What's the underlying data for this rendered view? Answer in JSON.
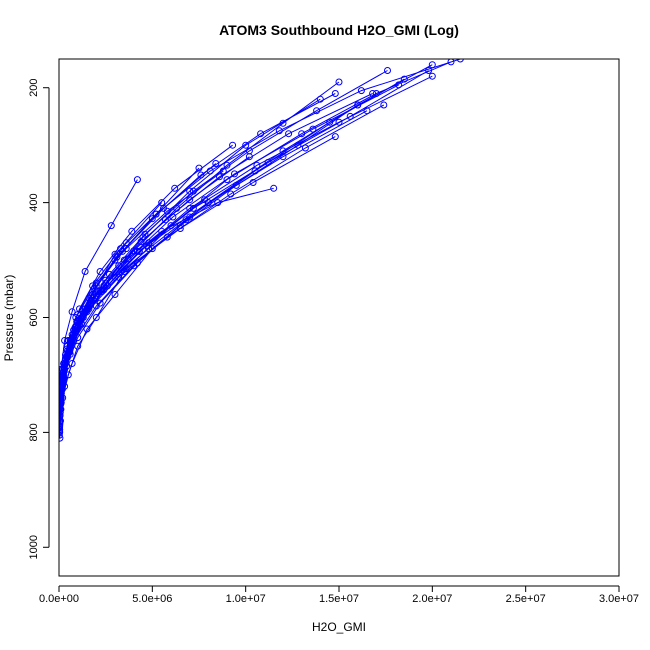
{
  "chart_data": {
    "type": "line",
    "title": "ATOM3 Southbound H2O_GMI (Log)",
    "xlabel": "H2O_GMI",
    "ylabel": "Pressure (mbar)",
    "xlim": [
      0,
      30000000
    ],
    "ylim": [
      1050,
      150
    ],
    "y_reversed": true,
    "grid": false,
    "x_ticks": [
      {
        "value": 0,
        "label": "0.0e+00"
      },
      {
        "value": 5000000,
        "label": "5.0e+06"
      },
      {
        "value": 10000000,
        "label": "1.0e+07"
      },
      {
        "value": 15000000,
        "label": "1.5e+07"
      },
      {
        "value": 20000000,
        "label": "2.0e+07"
      },
      {
        "value": 25000000,
        "label": "2.5e+07"
      },
      {
        "value": 30000000,
        "label": "3.0e+07"
      }
    ],
    "y_ticks": [
      {
        "value": 200,
        "label": "200"
      },
      {
        "value": 400,
        "label": "400"
      },
      {
        "value": 600,
        "label": "600"
      },
      {
        "value": 800,
        "label": "800"
      },
      {
        "value": 1000,
        "label": "1000"
      }
    ],
    "line_color": "#0000ff",
    "series": [
      {
        "x": [
          50000,
          80000,
          200000,
          500000,
          1000000,
          2000000,
          3500000,
          6000000,
          9000000,
          13000000,
          17000000,
          21000000
        ],
        "y": [
          810,
          780,
          740,
          700,
          650,
          600,
          520,
          440,
          360,
          280,
          210,
          155
        ]
      },
      {
        "x": [
          40000,
          100000,
          300000,
          700000,
          1500000,
          3000000,
          5000000,
          8000000,
          12000000,
          16000000,
          20000000
        ],
        "y": [
          800,
          760,
          720,
          680,
          620,
          560,
          480,
          400,
          310,
          230,
          160
        ]
      },
      {
        "x": [
          30000,
          60000,
          150000,
          400000,
          900000,
          1800000,
          3000000,
          5200000,
          7500000
        ],
        "y": [
          790,
          755,
          715,
          670,
          620,
          560,
          490,
          420,
          340
        ]
      },
      {
        "x": [
          60000,
          120000,
          250000,
          600000,
          1200000,
          2500000,
          4500000,
          7000000,
          10000000,
          14000000
        ],
        "y": [
          770,
          740,
          700,
          655,
          600,
          540,
          460,
          380,
          300,
          220
        ]
      },
      {
        "x": [
          20000,
          50000,
          120000,
          300000,
          700000,
          1400000,
          2800000,
          4200000
        ],
        "y": [
          775,
          735,
          690,
          640,
          590,
          520,
          440,
          360
        ]
      },
      {
        "x": [
          80000,
          200000,
          450000,
          900000,
          1700000,
          3200000,
          5500000,
          8500000,
          11500000
        ],
        "y": [
          750,
          715,
          670,
          625,
          575,
          510,
          450,
          400,
          375
        ]
      },
      {
        "x": [
          50000,
          150000,
          350000,
          800000,
          1600000,
          3000000,
          4800000,
          6800000
        ],
        "y": [
          760,
          720,
          680,
          630,
          585,
          530,
          480,
          430
        ]
      },
      {
        "x": [
          100000,
          300000,
          800000,
          2000000,
          4000000,
          6500000,
          9500000,
          12800000,
          16000000
        ],
        "y": [
          740,
          690,
          640,
          580,
          510,
          440,
          370,
          300,
          230
        ]
      },
      {
        "x": [
          30000,
          90000,
          200000,
          450000,
          900000,
          1800000,
          3300000,
          5500000
        ],
        "y": [
          780,
          745,
          700,
          650,
          600,
          545,
          480,
          400
        ]
      },
      {
        "x": [
          70000,
          180000,
          400000,
          1000000,
          2200000,
          4200000,
          7000000,
          10500000,
          14500000,
          18500000
        ],
        "y": [
          765,
          725,
          685,
          635,
          575,
          505,
          425,
          345,
          260,
          185
        ]
      },
      {
        "x": [
          40000,
          100000,
          250000,
          550000,
          1100000,
          2000000,
          3600000
        ],
        "y": [
          795,
          750,
          705,
          660,
          605,
          545,
          470
        ]
      },
      {
        "x": [
          90000,
          250000,
          600000,
          1300000,
          2600000,
          4800000,
          7800000
        ],
        "y": [
          735,
          695,
          650,
          600,
          545,
          470,
          395
        ]
      },
      {
        "x": [
          20000,
          40000,
          90000,
          200000,
          500000,
          1100000,
          2200000,
          3900000,
          6200000,
          9300000
        ],
        "y": [
          805,
          770,
          730,
          690,
          640,
          585,
          520,
          450,
          375,
          300
        ]
      },
      {
        "x": [
          60000,
          140000,
          320000,
          700000,
          1400000,
          2700000,
          4600000,
          7200000,
          10200000,
          13800000,
          17600000
        ],
        "y": [
          758,
          722,
          682,
          638,
          585,
          525,
          455,
          380,
          310,
          240,
          170
        ]
      },
      {
        "x": [
          100000,
          250000,
          500000,
          1000000,
          2000000,
          3600000,
          5800000,
          8800000
        ],
        "y": [
          720,
          680,
          640,
          595,
          540,
          480,
          415,
          345
        ]
      },
      {
        "x": [
          50000,
          120000,
          280000,
          600000,
          1200000,
          2300000,
          4000000,
          6300000,
          9000000,
          12000000,
          15000000
        ],
        "y": [
          785,
          748,
          708,
          664,
          612,
          552,
          484,
          410,
          335,
          262,
          190
        ]
      },
      {
        "x": [
          80000,
          200000,
          500000,
          1100000,
          2300000,
          4300000,
          7200000,
          11200000,
          15600000,
          19800000
        ],
        "y": [
          745,
          705,
          660,
          612,
          555,
          485,
          410,
          330,
          250,
          170
        ]
      },
      {
        "x": [
          30000,
          80000,
          180000,
          400000,
          850000,
          1700000,
          3100000,
          5200000,
          8100000,
          11800000,
          16200000,
          21500000
        ],
        "y": [
          792,
          752,
          712,
          668,
          618,
          562,
          495,
          420,
          345,
          275,
          205,
          150
        ]
      },
      {
        "x": [
          120000,
          350000,
          900000,
          2100000,
          4200000
        ],
        "y": [
          710,
          665,
          615,
          555,
          485
        ]
      },
      {
        "x": [
          40000,
          90000,
          200000,
          450000,
          950000,
          1900000,
          3400000,
          5600000,
          8400000
        ],
        "y": [
          782,
          742,
          702,
          658,
          607,
          550,
          485,
          410,
          332
        ]
      },
      {
        "x": [
          60000,
          170000,
          420000,
          950000,
          1900000,
          3500000,
          5700000,
          8600000,
          12300000,
          16800000
        ],
        "y": [
          752,
          712,
          668,
          620,
          565,
          500,
          430,
          355,
          280,
          210
        ]
      },
      {
        "x": [
          200000,
          600000,
          1500000,
          3200000,
          5800000,
          9200000,
          13200000,
          17400000
        ],
        "y": [
          690,
          640,
          590,
          530,
          460,
          385,
          305,
          230
        ]
      },
      {
        "x": [
          30000,
          70000,
          160000,
          360000,
          780000,
          1600000,
          3000000,
          5000000,
          7600000,
          10800000,
          14800000
        ],
        "y": [
          798,
          760,
          718,
          672,
          622,
          566,
          500,
          428,
          352,
          280,
          210
        ]
      },
      {
        "x": [
          150000,
          400000,
          1000000,
          2400000,
          4700000,
          8000000,
          12000000,
          16500000
        ],
        "y": [
          700,
          655,
          605,
          545,
          475,
          400,
          320,
          240
        ]
      },
      {
        "x": [
          70000,
          190000,
          450000,
          1000000,
          2000000,
          3700000,
          6100000,
          9400000,
          13600000,
          18200000
        ],
        "y": [
          748,
          708,
          665,
          618,
          562,
          498,
          425,
          350,
          272,
          195
        ]
      },
      {
        "x": [
          50000,
          130000,
          300000,
          650000,
          1300000,
          2500000,
          4400000,
          7000000,
          10200000
        ],
        "y": [
          772,
          732,
          690,
          645,
          593,
          535,
          468,
          395,
          320
        ]
      },
      {
        "x": [
          250000,
          700000,
          1700000,
          3600000,
          6500000,
          10400000,
          14800000
        ],
        "y": [
          680,
          630,
          578,
          515,
          445,
          365,
          285
        ]
      },
      {
        "x": [
          40000,
          110000,
          260000,
          580000,
          1200000,
          2400000,
          4300000,
          7000000,
          10600000,
          15000000,
          20000000
        ],
        "y": [
          788,
          748,
          706,
          660,
          610,
          552,
          485,
          410,
          335,
          260,
          180
        ]
      }
    ]
  }
}
